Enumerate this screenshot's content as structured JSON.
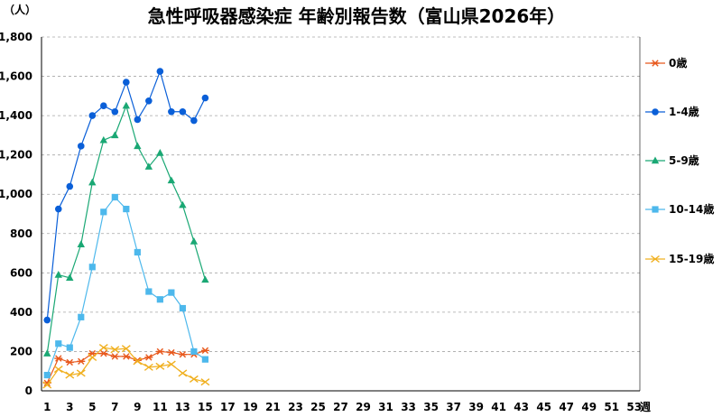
{
  "chart_data": {
    "type": "line",
    "title": "急性呼吸器感染症 年齢別報告数（富山県2026年）",
    "ylabel": "（人）",
    "xlabel": "週",
    "ylim": [
      0,
      1800
    ],
    "yticks": [
      0,
      200,
      400,
      600,
      800,
      1000,
      1200,
      1400,
      1600,
      1800
    ],
    "ytick_labels": [
      "0",
      "200",
      "400",
      "600",
      "800",
      "1,000",
      "1,200",
      "1,400",
      "1,600",
      "1,800"
    ],
    "xlim": [
      1,
      53
    ],
    "xticks": [
      1,
      3,
      5,
      7,
      9,
      11,
      13,
      15,
      17,
      19,
      21,
      23,
      25,
      27,
      29,
      31,
      33,
      35,
      37,
      39,
      41,
      43,
      45,
      47,
      49,
      51,
      53
    ],
    "x": [
      1,
      2,
      3,
      4,
      5,
      6,
      7,
      8,
      9,
      10,
      11,
      12,
      13,
      14,
      15
    ],
    "grid": true,
    "legend_position": "right",
    "series": [
      {
        "name": "0歳",
        "color": "#e8581c",
        "marker": "asterisk",
        "values": [
          40,
          165,
          145,
          150,
          190,
          190,
          175,
          175,
          155,
          170,
          200,
          195,
          185,
          185,
          205
        ]
      },
      {
        "name": "1-4歳",
        "color": "#0a5fd8",
        "marker": "circle",
        "values": [
          360,
          925,
          1040,
          1245,
          1400,
          1450,
          1420,
          1570,
          1380,
          1475,
          1625,
          1420,
          1420,
          1375,
          1490
        ]
      },
      {
        "name": "5-9歳",
        "color": "#1aa874",
        "marker": "triangle",
        "values": [
          190,
          590,
          575,
          745,
          1060,
          1275,
          1300,
          1450,
          1245,
          1140,
          1210,
          1070,
          945,
          760,
          565
        ]
      },
      {
        "name": "10-14歳",
        "color": "#4db8ec",
        "marker": "square",
        "values": [
          80,
          240,
          220,
          375,
          630,
          910,
          985,
          925,
          705,
          505,
          465,
          500,
          420,
          200,
          160
        ]
      },
      {
        "name": "15-19歳",
        "color": "#f0b020",
        "marker": "x",
        "values": [
          30,
          110,
          80,
          90,
          170,
          220,
          210,
          215,
          150,
          120,
          125,
          135,
          90,
          60,
          45
        ]
      }
    ]
  }
}
